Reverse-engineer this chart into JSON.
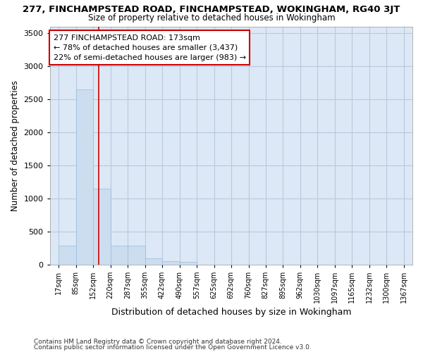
{
  "title": "277, FINCHAMPSTEAD ROAD, FINCHAMPSTEAD, WOKINGHAM, RG40 3JT",
  "subtitle": "Size of property relative to detached houses in Wokingham",
  "xlabel": "Distribution of detached houses by size in Wokingham",
  "ylabel": "Number of detached properties",
  "bar_color": "#ccddf0",
  "bar_edge_color": "#99bbdd",
  "grid_color": "#b8c8dc",
  "plot_bg_color": "#dce8f5",
  "fig_bg_color": "#ffffff",
  "red_line_x": 173,
  "annotation_line1": "277 FINCHAMPSTEAD ROAD: 173sqm",
  "annotation_line2": "← 78% of detached houses are smaller (3,437)",
  "annotation_line3": "22% of semi-detached houses are larger (983) →",
  "annotation_box_color": "#ffffff",
  "annotation_box_edge": "#cc0000",
  "footnote1": "Contains HM Land Registry data © Crown copyright and database right 2024.",
  "footnote2": "Contains public sector information licensed under the Open Government Licence v3.0.",
  "bin_edges": [
    17,
    85,
    152,
    220,
    287,
    355,
    422,
    490,
    557,
    625,
    692,
    760,
    827,
    895,
    962,
    1030,
    1097,
    1165,
    1232,
    1300,
    1367
  ],
  "bin_labels": [
    "17sqm",
    "85sqm",
    "152sqm",
    "220sqm",
    "287sqm",
    "355sqm",
    "422sqm",
    "490sqm",
    "557sqm",
    "625sqm",
    "692sqm",
    "760sqm",
    "827sqm",
    "895sqm",
    "962sqm",
    "1030sqm",
    "1097sqm",
    "1165sqm",
    "1232sqm",
    "1300sqm",
    "1367sqm"
  ],
  "bar_heights": [
    280,
    2650,
    1150,
    280,
    280,
    90,
    50,
    40,
    0,
    0,
    0,
    0,
    0,
    0,
    0,
    0,
    0,
    0,
    0,
    0
  ],
  "ylim": [
    0,
    3600
  ],
  "yticks": [
    0,
    500,
    1000,
    1500,
    2000,
    2500,
    3000,
    3500
  ]
}
